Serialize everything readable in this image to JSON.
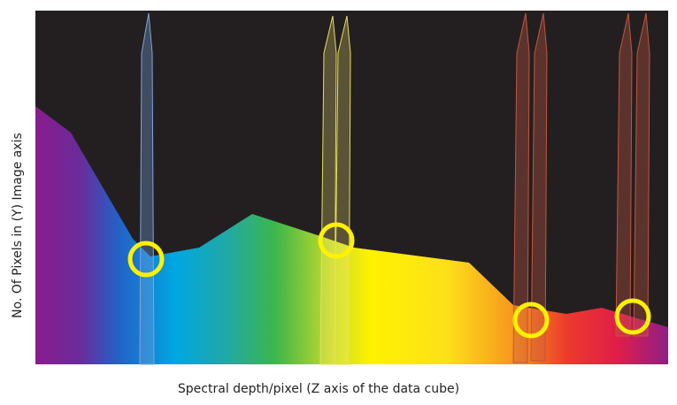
{
  "axes": {
    "y_label": "No. Of Pixels in (Y) Image axis",
    "x_label": "Spectral depth/pixel (Z axis of the data cube)"
  }
}
